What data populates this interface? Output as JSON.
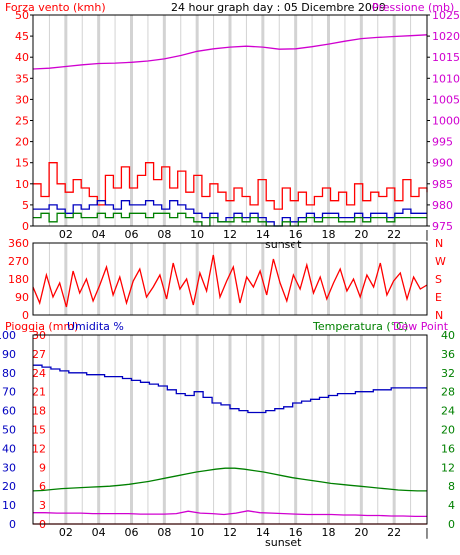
{
  "colors": {
    "red": "#ff0000",
    "magenta": "#d000d0",
    "blue": "#0000c0",
    "green": "#008000",
    "grid": "#d3d3d3",
    "rain": "#ff0000"
  },
  "hour_ticks": [
    "02",
    "04",
    "06",
    "08",
    "10",
    "12",
    "14",
    "16",
    "18",
    "20",
    "22"
  ],
  "tick_end": "|",
  "sunset_label": "sunset",
  "chart_data": [
    {
      "type": "line",
      "title": "24 hour graph day : 05 Dicembre 2009",
      "left_axis_label": "Forza vento (kmh)",
      "right_axis_label": "Pressione (mb)",
      "left_ticks": [
        "0",
        "5",
        "10",
        "15",
        "20",
        "25",
        "30",
        "35",
        "40",
        "45",
        "50"
      ],
      "left_lim": [
        0,
        50
      ],
      "right_ticks": [
        "975",
        "980",
        "985",
        "990",
        "995",
        "1000",
        "1005",
        "1010",
        "1015",
        "1020",
        "1025"
      ],
      "right_lim": [
        975,
        1025
      ],
      "grid": true,
      "series": [
        {
          "axis": "right",
          "color": "magenta",
          "values": [
            1012.2,
            1012.4,
            1012.8,
            1013.2,
            1013.5,
            1013.6,
            1013.8,
            1014.1,
            1014.6,
            1015.4,
            1016.4,
            1017.0,
            1017.4,
            1017.6,
            1017.4,
            1016.9,
            1017.0,
            1017.5,
            1018.1,
            1018.8,
            1019.4,
            1019.7,
            1019.9,
            1020.1,
            1020.3
          ]
        },
        {
          "axis": "left",
          "color": "red",
          "values": [
            10,
            7,
            15,
            10,
            8,
            11,
            9,
            7,
            5,
            12,
            9,
            14,
            9,
            12,
            15,
            11,
            14,
            9,
            13,
            8,
            12,
            7,
            10,
            8,
            6,
            9,
            7,
            5,
            11,
            6,
            4,
            9,
            6,
            8,
            5,
            7,
            9,
            6,
            8,
            5,
            10,
            6,
            8,
            7,
            9,
            6,
            11,
            7,
            9,
            8
          ]
        },
        {
          "axis": "left",
          "color": "blue",
          "values": [
            4,
            4,
            5,
            4,
            3,
            5,
            4,
            5,
            6,
            5,
            4,
            6,
            5,
            5,
            6,
            5,
            4,
            6,
            5,
            4,
            3,
            2,
            3,
            1,
            2,
            3,
            2,
            3,
            2,
            1,
            0,
            2,
            1,
            2,
            3,
            2,
            3,
            3,
            2,
            2,
            3,
            2,
            3,
            3,
            2,
            3,
            4,
            3,
            3,
            3
          ]
        },
        {
          "axis": "left",
          "color": "green",
          "values": [
            2,
            3,
            1,
            3,
            2,
            3,
            2,
            2,
            3,
            2,
            3,
            2,
            3,
            3,
            2,
            3,
            3,
            2,
            3,
            2,
            1,
            0,
            2,
            1,
            1,
            2,
            1,
            2,
            1,
            0,
            0,
            1,
            0,
            1,
            2,
            1,
            2,
            2,
            1,
            1,
            2,
            1,
            2,
            2,
            1,
            2,
            2,
            2,
            2,
            2
          ]
        }
      ]
    },
    {
      "type": "line",
      "left_ticks": [
        "0",
        "90",
        "180",
        "270",
        "360"
      ],
      "left_lim": [
        0,
        360
      ],
      "right_ticks": [
        "N",
        "E",
        "S",
        "W",
        "N"
      ],
      "series": [
        {
          "axis": "left",
          "color": "red",
          "name": "",
          "values": [
            140,
            60,
            200,
            90,
            160,
            40,
            220,
            110,
            180,
            70,
            150,
            240,
            100,
            190,
            60,
            170,
            230,
            90,
            140,
            200,
            80,
            260,
            130,
            180,
            50,
            210,
            120,
            300,
            90,
            170,
            240,
            60,
            190,
            140,
            220,
            100,
            280,
            160,
            70,
            200,
            130,
            250,
            110,
            190,
            80,
            160,
            230,
            120,
            180,
            90,
            200,
            140,
            260,
            100,
            170,
            210,
            80,
            190,
            130,
            150
          ]
        }
      ]
    },
    {
      "type": "line",
      "left_axis_label": "Pioggia (mm)",
      "left2_axis_label": "Umidita %",
      "right_axis_label": "Temperatura (°C)",
      "right2_axis_label": "Dew Point",
      "rain_ticks": [
        "0",
        "3",
        "6",
        "9",
        "12",
        "15",
        "18",
        "21",
        "24",
        "27",
        "30"
      ],
      "rain_lim": [
        0,
        30
      ],
      "humidity_ticks": [
        "0",
        "10",
        "20",
        "30",
        "40",
        "50",
        "60",
        "70",
        "80",
        "90",
        "100"
      ],
      "humidity_lim": [
        0,
        100
      ],
      "temp_ticks": [
        "0",
        "4",
        "8",
        "12",
        "16",
        "20",
        "24",
        "28",
        "32",
        "36",
        "40"
      ],
      "temp_lim": [
        0,
        40
      ],
      "grid": true,
      "series": [
        {
          "axis": "humidity",
          "color": "blue",
          "values": [
            84,
            83,
            82,
            81,
            80,
            80,
            79,
            79,
            78,
            78,
            77,
            76,
            75,
            74,
            73,
            71,
            69,
            68,
            70,
            67,
            64,
            63,
            61,
            60,
            59,
            59,
            60,
            61,
            62,
            64,
            65,
            66,
            67,
            68,
            69,
            69,
            70,
            70,
            71,
            71,
            72,
            72,
            72,
            72,
            72
          ]
        },
        {
          "axis": "temp",
          "color": "green",
          "values": [
            7.0,
            7.1,
            7.3,
            7.5,
            7.6,
            7.7,
            7.8,
            7.9,
            8.0,
            8.2,
            8.4,
            8.7,
            9.0,
            9.4,
            9.8,
            10.2,
            10.6,
            11.0,
            11.3,
            11.6,
            11.8,
            11.8,
            11.6,
            11.3,
            11.0,
            10.6,
            10.2,
            9.8,
            9.5,
            9.2,
            8.9,
            8.6,
            8.4,
            8.2,
            8.0,
            7.8,
            7.6,
            7.4,
            7.2,
            7.1,
            7.0,
            7.0
          ]
        },
        {
          "axis": "temp",
          "color": "magenta",
          "values": [
            2.4,
            2.4,
            2.3,
            2.3,
            2.3,
            2.2,
            2.2,
            2.2,
            2.2,
            2.1,
            2.1,
            2.1,
            2.2,
            2.7,
            2.3,
            2.2,
            2.0,
            2.3,
            2.8,
            2.4,
            2.3,
            2.2,
            2.1,
            2.0,
            2.0,
            2.0,
            1.9,
            1.9,
            1.8,
            1.8,
            1.7,
            1.7,
            1.6,
            1.6
          ]
        },
        {
          "axis": "rain",
          "color": "red",
          "values": [
            0,
            0
          ]
        }
      ]
    }
  ]
}
